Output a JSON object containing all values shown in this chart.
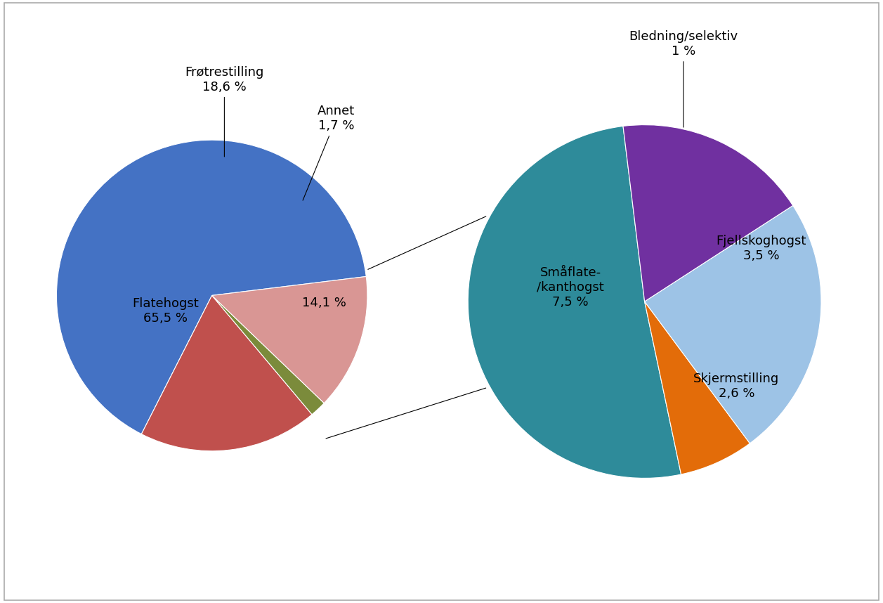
{
  "left_pie": {
    "values": [
      65.5,
      18.6,
      1.7,
      14.1
    ],
    "colors": [
      "#4472C4",
      "#C0504D",
      "#7B8B3B",
      "#D99694"
    ],
    "start_angle": 7,
    "labels": [
      "Flatehogst\n65,5 %",
      "Frøtrestilling\n18,6 %",
      "Annet\n1,7 %",
      "14,1 %"
    ]
  },
  "right_pie": {
    "values": [
      7.5,
      1.0,
      3.5,
      2.6
    ],
    "colors": [
      "#2E8B9A",
      "#E36C09",
      "#9DC3E6",
      "#7030A0"
    ],
    "start_angle": 97,
    "labels": [
      "Småflate-\n/kanthogst\n7,5 %",
      "Bledning/selektiv\n1 %",
      "Fjellskoghogst\n3,5 %",
      "Skjermstilling\n2,6 %"
    ]
  },
  "background_color": "#FFFFFF",
  "font_size": 13
}
